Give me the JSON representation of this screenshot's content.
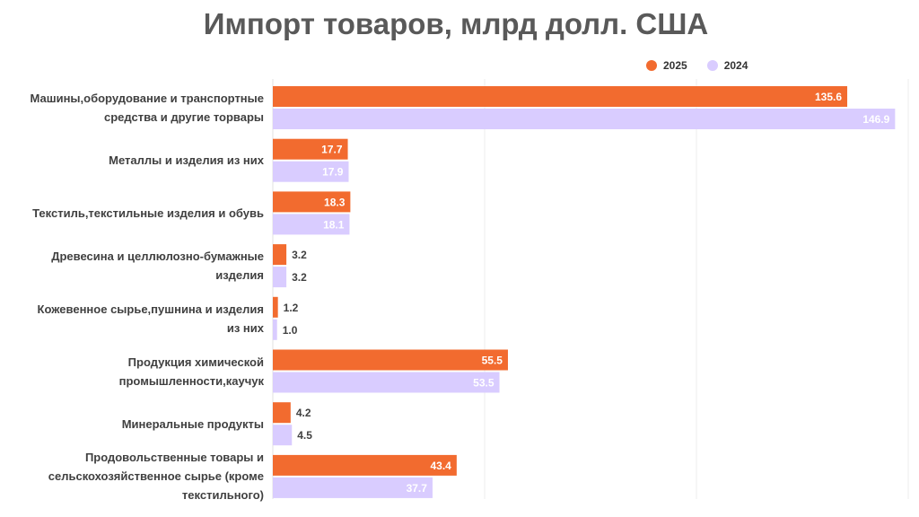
{
  "chart_data": {
    "type": "bar",
    "orientation": "horizontal",
    "title": "Импорт товаров, млрд долл. США",
    "categories": [
      "Машины,оборудование и транспортные средства и другие торвары",
      "Металлы и изделия из них",
      "Текстиль,текстильные изделия и обувь",
      "Древесина и целлюлозно-бумажные изделия",
      "Кожевенное сырье,пушнина и изделия из них",
      "Продукция химической промышленности,каучук",
      "Минеральные продукты",
      "Продовольственные товары и сельскохозяйственное сырье (кроме текстильного)"
    ],
    "series": [
      {
        "name": "2025",
        "color": "#F26B2F",
        "values": [
          135.6,
          17.7,
          18.3,
          3.2,
          1.2,
          55.5,
          4.2,
          43.4
        ],
        "labels": [
          "135.6",
          "17.7",
          "18.3",
          "3.2",
          "1.2",
          "55.5",
          "4.2",
          "43.4"
        ]
      },
      {
        "name": "2024",
        "color": "#D9CCFF",
        "values": [
          146.9,
          17.9,
          18.1,
          3.2,
          1.0,
          53.5,
          4.5,
          37.7
        ],
        "labels": [
          "146.9",
          "17.9",
          "18.1",
          "3.2",
          "1.0",
          "53.5",
          "4.5",
          "37.7"
        ]
      }
    ],
    "xlim": [
      0,
      150
    ],
    "grid": true,
    "legend_position": "top-right"
  }
}
